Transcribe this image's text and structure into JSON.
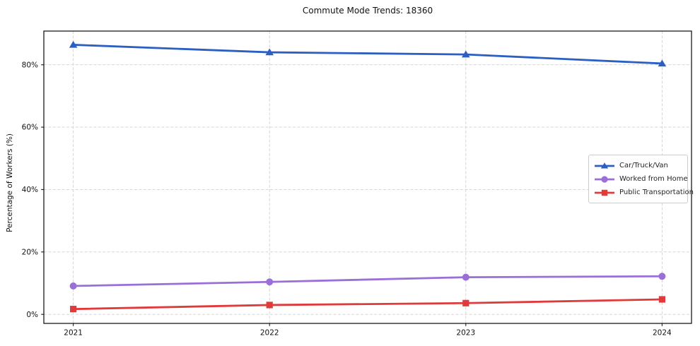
{
  "title": "Commute Mode Trends: 18360",
  "chart_data": {
    "type": "line",
    "title": "Commute Mode Trends: 18360",
    "xlabel": "",
    "ylabel": "Percentage of Workers (%)",
    "x": [
      2021,
      2022,
      2023,
      2024
    ],
    "xtick_labels": [
      "2021",
      "2022",
      "2023",
      "2024"
    ],
    "yticks": [
      0,
      20,
      40,
      60,
      80
    ],
    "ytick_labels": [
      "0%",
      "20%",
      "40%",
      "60%",
      "80%"
    ],
    "xlim": [
      2020.85,
      2024.15
    ],
    "ylim": [
      -2.9,
      90.8
    ],
    "grid": true,
    "grid_style": "dashed",
    "grid_color": "#cfcfcf",
    "axes_color": "#1a1a1a",
    "background_color": "#ffffff",
    "legend_position": "right-center",
    "series": [
      {
        "name": "Car/Truck/Van",
        "color": "#2c5fc2",
        "marker": "triangle",
        "values": [
          86.4,
          84.0,
          83.3,
          80.4
        ]
      },
      {
        "name": "Worked from Home",
        "color": "#9a6fd8",
        "marker": "circle",
        "values": [
          9.1,
          10.4,
          11.9,
          12.2
        ]
      },
      {
        "name": "Public Transportation",
        "color": "#e03a3a",
        "marker": "square",
        "values": [
          1.7,
          3.0,
          3.6,
          4.8
        ]
      }
    ]
  }
}
